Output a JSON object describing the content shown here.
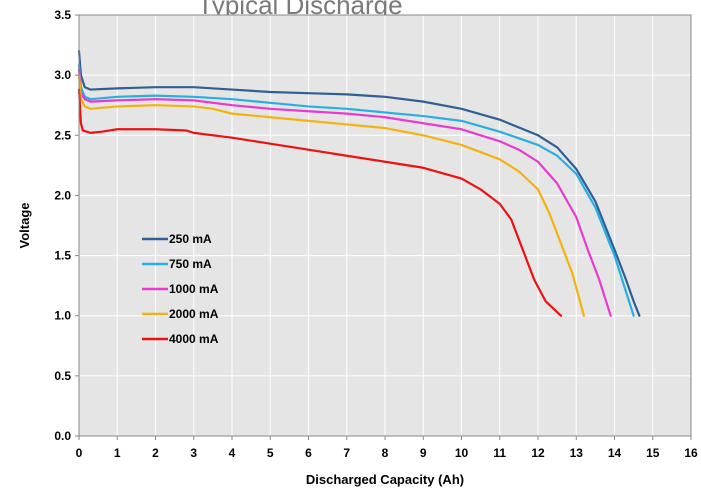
{
  "chart_data": {
    "type": "line",
    "title": "Typical Discharge",
    "xlabel": "Discharged Capacity (Ah)",
    "ylabel": "Voltage",
    "xlim": [
      0,
      16
    ],
    "ylim": [
      0.0,
      3.5
    ],
    "xticks": [
      "0",
      "1",
      "2",
      "3",
      "4",
      "5",
      "6",
      "7",
      "8",
      "9",
      "10",
      "11",
      "12",
      "13",
      "14",
      "15",
      "16"
    ],
    "yticks": [
      "0.0",
      "0.5",
      "1.0",
      "1.5",
      "2.0",
      "2.5",
      "3.0",
      "3.5"
    ],
    "grid": true,
    "legend_position": "center-left",
    "background": "#e5e5e5",
    "series": [
      {
        "name": "250 mA",
        "color": "#2f5f93",
        "points": [
          [
            0,
            3.2
          ],
          [
            0.05,
            3.0
          ],
          [
            0.15,
            2.9
          ],
          [
            0.3,
            2.88
          ],
          [
            1,
            2.89
          ],
          [
            2,
            2.9
          ],
          [
            3,
            2.9
          ],
          [
            4,
            2.88
          ],
          [
            5,
            2.86
          ],
          [
            6,
            2.85
          ],
          [
            7,
            2.84
          ],
          [
            8,
            2.82
          ],
          [
            9,
            2.78
          ],
          [
            10,
            2.72
          ],
          [
            11,
            2.63
          ],
          [
            12,
            2.5
          ],
          [
            12.5,
            2.4
          ],
          [
            13,
            2.22
          ],
          [
            13.5,
            1.95
          ],
          [
            14,
            1.55
          ],
          [
            14.3,
            1.3
          ],
          [
            14.5,
            1.12
          ],
          [
            14.65,
            1.0
          ]
        ]
      },
      {
        "name": "750 mA",
        "color": "#29aee2",
        "points": [
          [
            0,
            3.08
          ],
          [
            0.05,
            2.9
          ],
          [
            0.15,
            2.82
          ],
          [
            0.3,
            2.8
          ],
          [
            1,
            2.82
          ],
          [
            2,
            2.83
          ],
          [
            3,
            2.82
          ],
          [
            4,
            2.8
          ],
          [
            5,
            2.77
          ],
          [
            6,
            2.74
          ],
          [
            7,
            2.72
          ],
          [
            8,
            2.69
          ],
          [
            9,
            2.66
          ],
          [
            10,
            2.62
          ],
          [
            11,
            2.53
          ],
          [
            12,
            2.42
          ],
          [
            12.5,
            2.33
          ],
          [
            13,
            2.18
          ],
          [
            13.5,
            1.9
          ],
          [
            14,
            1.5
          ],
          [
            14.3,
            1.2
          ],
          [
            14.5,
            1.0
          ]
        ]
      },
      {
        "name": "1000 mA",
        "color": "#e83ad1",
        "points": [
          [
            0,
            3.05
          ],
          [
            0.05,
            2.85
          ],
          [
            0.15,
            2.8
          ],
          [
            0.3,
            2.78
          ],
          [
            1,
            2.79
          ],
          [
            2,
            2.8
          ],
          [
            3,
            2.79
          ],
          [
            4,
            2.75
          ],
          [
            5,
            2.72
          ],
          [
            6,
            2.7
          ],
          [
            7,
            2.68
          ],
          [
            8,
            2.65
          ],
          [
            9,
            2.6
          ],
          [
            10,
            2.55
          ],
          [
            11,
            2.45
          ],
          [
            11.5,
            2.38
          ],
          [
            12,
            2.28
          ],
          [
            12.5,
            2.1
          ],
          [
            13,
            1.82
          ],
          [
            13.3,
            1.55
          ],
          [
            13.6,
            1.3
          ],
          [
            13.9,
            1.0
          ]
        ]
      },
      {
        "name": "2000 mA",
        "color": "#f5b20f",
        "points": [
          [
            0,
            3.0
          ],
          [
            0.05,
            2.8
          ],
          [
            0.15,
            2.74
          ],
          [
            0.3,
            2.72
          ],
          [
            1,
            2.74
          ],
          [
            2,
            2.75
          ],
          [
            3,
            2.74
          ],
          [
            3.5,
            2.72
          ],
          [
            4,
            2.68
          ],
          [
            5,
            2.65
          ],
          [
            6,
            2.62
          ],
          [
            7,
            2.59
          ],
          [
            8,
            2.56
          ],
          [
            9,
            2.5
          ],
          [
            10,
            2.42
          ],
          [
            11,
            2.3
          ],
          [
            11.5,
            2.2
          ],
          [
            12,
            2.05
          ],
          [
            12.3,
            1.85
          ],
          [
            12.6,
            1.6
          ],
          [
            12.9,
            1.35
          ],
          [
            13.2,
            1.0
          ]
        ]
      },
      {
        "name": "4000 mA",
        "color": "#ee1111",
        "points": [
          [
            0,
            2.88
          ],
          [
            0.05,
            2.6
          ],
          [
            0.1,
            2.54
          ],
          [
            0.3,
            2.52
          ],
          [
            0.6,
            2.53
          ],
          [
            1,
            2.55
          ],
          [
            2,
            2.55
          ],
          [
            2.8,
            2.54
          ],
          [
            3,
            2.52
          ],
          [
            4,
            2.48
          ],
          [
            5,
            2.43
          ],
          [
            6,
            2.38
          ],
          [
            7,
            2.33
          ],
          [
            8,
            2.28
          ],
          [
            9,
            2.23
          ],
          [
            10,
            2.14
          ],
          [
            10.5,
            2.05
          ],
          [
            11,
            1.93
          ],
          [
            11.3,
            1.8
          ],
          [
            11.6,
            1.55
          ],
          [
            11.9,
            1.3
          ],
          [
            12.2,
            1.12
          ],
          [
            12.6,
            1.0
          ]
        ]
      }
    ]
  }
}
